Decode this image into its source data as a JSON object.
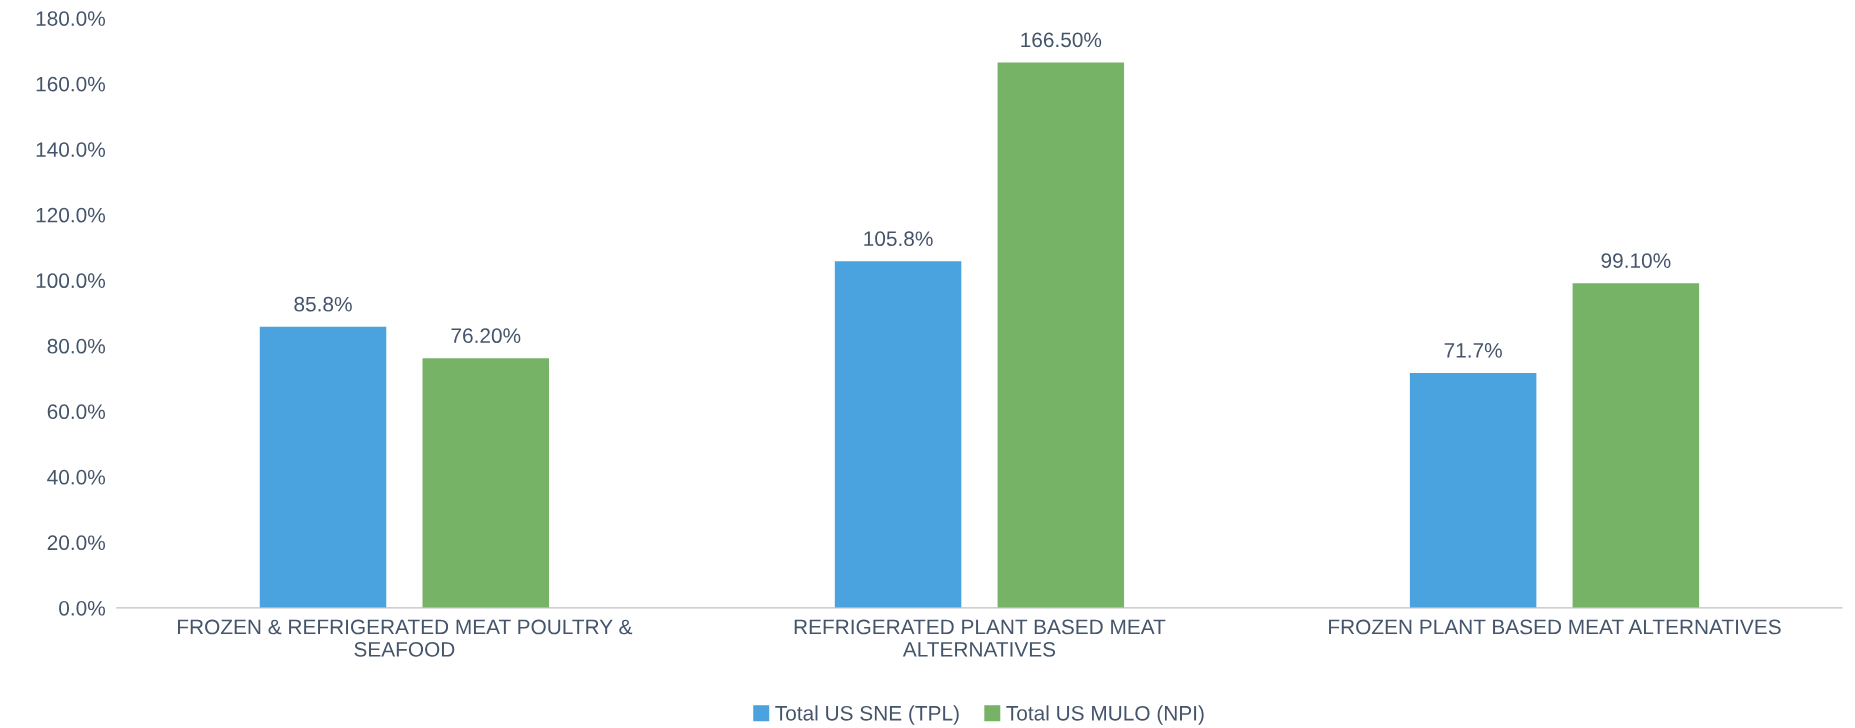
{
  "chart_data": {
    "type": "bar",
    "categories": [
      "FROZEN & REFRIGERATED MEAT POULTRY &\nSEAFOOD",
      "REFRIGERATED PLANT BASED MEAT\nALTERNATIVES",
      "FROZEN PLANT BASED MEAT ALTERNATIVES"
    ],
    "series": [
      {
        "name": "Total US SNE (TPL)",
        "color": "#4aa3df",
        "values": [
          85.8,
          105.8,
          71.7
        ],
        "value_labels": [
          "85.8%",
          "105.8%",
          "71.7%"
        ]
      },
      {
        "name": "Total US MULO (NPI)",
        "color": "#77b366",
        "values": [
          76.2,
          166.5,
          99.1
        ],
        "value_labels": [
          "76.20%",
          "166.50%",
          "99.10%"
        ]
      }
    ],
    "ylim": [
      0,
      180
    ],
    "yticks": [
      {
        "value": 0,
        "label": "0.0%"
      },
      {
        "value": 20,
        "label": "20.0%"
      },
      {
        "value": 40,
        "label": "40.0%"
      },
      {
        "value": 60,
        "label": "60.0%"
      },
      {
        "value": 80,
        "label": "80.0%"
      },
      {
        "value": 100,
        "label": "100.0%"
      },
      {
        "value": 120,
        "label": "120.0%"
      },
      {
        "value": 140,
        "label": "140.0%"
      },
      {
        "value": 160,
        "label": "160.0%"
      },
      {
        "value": 180,
        "label": "180.0%"
      }
    ],
    "grid": false,
    "legend": "bottom"
  }
}
